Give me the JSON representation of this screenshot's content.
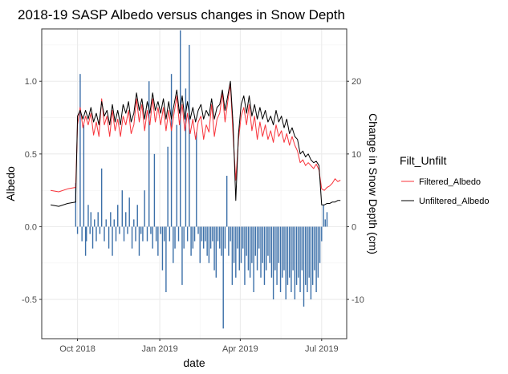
{
  "chart_data": {
    "type": "line",
    "title": "2018-19 SASP Albedo versus changes in Snow Depth",
    "xlabel": "date",
    "ylabel": "Albedo",
    "y2label": "Change in Snow Depth (cm)",
    "x_ticks": [
      "Oct 2018",
      "Jan 2019",
      "Apr 2019",
      "Jul 2019"
    ],
    "x_tick_dates": [
      "2018-10-01",
      "2019-01-01",
      "2019-04-01",
      "2019-07-01"
    ],
    "xlim": [
      "2018-08-22",
      "2019-07-29"
    ],
    "ylim": [
      -0.77,
      1.36
    ],
    "y_ticks": [
      -0.5,
      0.0,
      0.5,
      1.0
    ],
    "y_tick_labels": [
      "-0.5",
      "0.0",
      "0.5",
      "1.0"
    ],
    "y2lim": [
      -15.4,
      27.2
    ],
    "y2_ticks": [
      -10,
      0,
      10,
      20
    ],
    "y2_tick_labels": [
      "-10",
      "0",
      "10",
      "20"
    ],
    "grid": true,
    "legend": {
      "title": "Filt_Unfilt",
      "position": "right",
      "entries": [
        {
          "label": "Filtered_Albedo",
          "color": "#F8333A"
        },
        {
          "label": "Unfiltered_Albedo",
          "color": "#000000"
        }
      ]
    },
    "series": [
      {
        "name": "Filtered_Albedo",
        "color": "#F8333A",
        "dates": [
          "2018-09-01",
          "2018-09-10",
          "2018-09-20",
          "2018-09-29",
          "2018-10-01",
          "2018-10-04",
          "2018-10-07",
          "2018-10-10",
          "2018-10-13",
          "2018-10-16",
          "2018-10-19",
          "2018-10-22",
          "2018-10-25",
          "2018-10-28",
          "2018-10-31",
          "2018-11-03",
          "2018-11-06",
          "2018-11-09",
          "2018-11-12",
          "2018-11-15",
          "2018-11-18",
          "2018-11-21",
          "2018-11-24",
          "2018-11-27",
          "2018-11-30",
          "2018-12-03",
          "2018-12-06",
          "2018-12-09",
          "2018-12-12",
          "2018-12-15",
          "2018-12-18",
          "2018-12-21",
          "2018-12-24",
          "2018-12-27",
          "2018-12-30",
          "2019-01-02",
          "2019-01-05",
          "2019-01-08",
          "2019-01-11",
          "2019-01-14",
          "2019-01-17",
          "2019-01-20",
          "2019-01-23",
          "2019-01-26",
          "2019-01-29",
          "2019-02-01",
          "2019-02-04",
          "2019-02-07",
          "2019-02-10",
          "2019-02-13",
          "2019-02-16",
          "2019-02-19",
          "2019-02-22",
          "2019-02-25",
          "2019-02-28",
          "2019-03-03",
          "2019-03-06",
          "2019-03-09",
          "2019-03-12",
          "2019-03-15",
          "2019-03-18",
          "2019-03-21",
          "2019-03-24",
          "2019-03-27",
          "2019-03-30",
          "2019-04-02",
          "2019-04-05",
          "2019-04-08",
          "2019-04-11",
          "2019-04-14",
          "2019-04-17",
          "2019-04-20",
          "2019-04-23",
          "2019-04-26",
          "2019-04-29",
          "2019-05-02",
          "2019-05-05",
          "2019-05-08",
          "2019-05-11",
          "2019-05-14",
          "2019-05-17",
          "2019-05-20",
          "2019-05-23",
          "2019-05-26",
          "2019-05-29",
          "2019-06-01",
          "2019-06-04",
          "2019-06-07",
          "2019-06-10",
          "2019-06-13",
          "2019-06-16",
          "2019-06-19",
          "2019-06-22",
          "2019-06-25",
          "2019-06-28",
          "2019-07-01",
          "2019-07-04",
          "2019-07-07",
          "2019-07-10",
          "2019-07-13",
          "2019-07-16",
          "2019-07-19",
          "2019-07-22"
        ],
        "values": [
          0.25,
          0.24,
          0.26,
          0.27,
          0.7,
          0.82,
          0.68,
          0.76,
          0.7,
          0.78,
          0.63,
          0.72,
          0.62,
          0.88,
          0.7,
          0.76,
          0.62,
          0.8,
          0.66,
          0.74,
          0.62,
          0.76,
          0.7,
          0.8,
          0.64,
          0.7,
          0.88,
          0.72,
          0.84,
          0.66,
          0.8,
          0.7,
          0.88,
          0.72,
          0.82,
          0.7,
          0.82,
          0.66,
          0.8,
          0.66,
          0.78,
          0.9,
          0.7,
          0.84,
          0.66,
          0.78,
          0.64,
          0.74,
          0.6,
          0.72,
          0.76,
          0.6,
          0.7,
          0.65,
          0.84,
          0.62,
          0.74,
          0.78,
          0.92,
          0.72,
          0.86,
          0.98,
          0.62,
          0.32,
          0.6,
          0.76,
          0.82,
          0.7,
          0.84,
          0.66,
          0.76,
          0.6,
          0.72,
          0.62,
          0.7,
          0.6,
          0.66,
          0.58,
          0.7,
          0.62,
          0.66,
          0.58,
          0.64,
          0.56,
          0.62,
          0.56,
          0.52,
          0.44,
          0.46,
          0.42,
          0.44,
          0.42,
          0.4,
          0.43,
          0.39,
          0.26,
          0.25,
          0.27,
          0.28,
          0.3,
          0.33,
          0.31,
          0.32
        ]
      },
      {
        "name": "Unfiltered_Albedo",
        "color": "#000000",
        "dates": [
          "2018-09-01",
          "2018-09-10",
          "2018-09-20",
          "2018-09-29",
          "2018-10-01",
          "2018-10-04",
          "2018-10-07",
          "2018-10-10",
          "2018-10-13",
          "2018-10-16",
          "2018-10-19",
          "2018-10-22",
          "2018-10-25",
          "2018-10-28",
          "2018-10-31",
          "2018-11-03",
          "2018-11-06",
          "2018-11-09",
          "2018-11-12",
          "2018-11-15",
          "2018-11-18",
          "2018-11-21",
          "2018-11-24",
          "2018-11-27",
          "2018-11-30",
          "2018-12-03",
          "2018-12-06",
          "2018-12-09",
          "2018-12-12",
          "2018-12-15",
          "2018-12-18",
          "2018-12-21",
          "2018-12-24",
          "2018-12-27",
          "2018-12-30",
          "2019-01-02",
          "2019-01-05",
          "2019-01-08",
          "2019-01-11",
          "2019-01-14",
          "2019-01-17",
          "2019-01-20",
          "2019-01-23",
          "2019-01-26",
          "2019-01-29",
          "2019-02-01",
          "2019-02-04",
          "2019-02-07",
          "2019-02-10",
          "2019-02-13",
          "2019-02-16",
          "2019-02-19",
          "2019-02-22",
          "2019-02-25",
          "2019-02-28",
          "2019-03-03",
          "2019-03-06",
          "2019-03-09",
          "2019-03-12",
          "2019-03-15",
          "2019-03-18",
          "2019-03-21",
          "2019-03-24",
          "2019-03-27",
          "2019-03-30",
          "2019-04-02",
          "2019-04-05",
          "2019-04-08",
          "2019-04-11",
          "2019-04-14",
          "2019-04-17",
          "2019-04-20",
          "2019-04-23",
          "2019-04-26",
          "2019-04-29",
          "2019-05-02",
          "2019-05-05",
          "2019-05-08",
          "2019-05-11",
          "2019-05-14",
          "2019-05-17",
          "2019-05-20",
          "2019-05-23",
          "2019-05-26",
          "2019-05-29",
          "2019-06-01",
          "2019-06-04",
          "2019-06-07",
          "2019-06-10",
          "2019-06-13",
          "2019-06-16",
          "2019-06-19",
          "2019-06-22",
          "2019-06-25",
          "2019-06-28",
          "2019-07-01",
          "2019-07-04",
          "2019-07-07",
          "2019-07-10",
          "2019-07-13",
          "2019-07-16",
          "2019-07-19",
          "2019-07-22"
        ],
        "values": [
          0.15,
          0.14,
          0.16,
          0.17,
          0.76,
          0.8,
          0.74,
          0.8,
          0.74,
          0.82,
          0.72,
          0.78,
          0.7,
          0.86,
          0.76,
          0.8,
          0.7,
          0.84,
          0.72,
          0.8,
          0.7,
          0.84,
          0.78,
          0.86,
          0.72,
          0.78,
          0.92,
          0.8,
          0.88,
          0.74,
          0.86,
          0.78,
          0.92,
          0.8,
          0.86,
          0.78,
          0.88,
          0.74,
          0.86,
          0.74,
          0.84,
          0.94,
          0.78,
          0.9,
          0.74,
          0.86,
          0.74,
          0.82,
          0.72,
          0.8,
          0.84,
          0.74,
          0.8,
          0.76,
          0.88,
          0.74,
          0.82,
          0.84,
          0.94,
          0.8,
          0.9,
          1.0,
          0.7,
          0.18,
          0.64,
          0.84,
          0.9,
          0.78,
          0.9,
          0.76,
          0.84,
          0.74,
          0.82,
          0.74,
          0.8,
          0.72,
          0.76,
          0.7,
          0.8,
          0.72,
          0.76,
          0.68,
          0.74,
          0.64,
          0.68,
          0.62,
          0.6,
          0.5,
          0.52,
          0.48,
          0.5,
          0.46,
          0.44,
          0.45,
          0.42,
          0.15,
          0.15,
          0.16,
          0.16,
          0.17,
          0.17,
          0.18,
          0.18
        ]
      }
    ],
    "bars": {
      "name": "Change in Snow Depth",
      "color": "#3B6FA8",
      "axis": "right",
      "dates": [
        "2018-09-29",
        "2018-10-01",
        "2018-10-04",
        "2018-10-06",
        "2018-10-08",
        "2018-10-10",
        "2018-10-11",
        "2018-10-13",
        "2018-10-15",
        "2018-10-16",
        "2018-10-18",
        "2018-10-20",
        "2018-10-22",
        "2018-10-24",
        "2018-10-26",
        "2018-10-28",
        "2018-10-31",
        "2018-11-02",
        "2018-11-05",
        "2018-11-07",
        "2018-11-09",
        "2018-11-11",
        "2018-11-13",
        "2018-11-15",
        "2018-11-17",
        "2018-11-20",
        "2018-11-22",
        "2018-11-24",
        "2018-11-26",
        "2018-11-28",
        "2018-12-01",
        "2018-12-03",
        "2018-12-05",
        "2018-12-07",
        "2018-12-09",
        "2018-12-11",
        "2018-12-13",
        "2018-12-15",
        "2018-12-18",
        "2018-12-20",
        "2018-12-22",
        "2018-12-24",
        "2018-12-26",
        "2018-12-28",
        "2018-12-30",
        "2019-01-02",
        "2019-01-04",
        "2019-01-06",
        "2019-01-08",
        "2019-01-10",
        "2019-01-12",
        "2019-01-14",
        "2019-01-16",
        "2019-01-18",
        "2019-01-20",
        "2019-01-22",
        "2019-01-24",
        "2019-01-26",
        "2019-01-28",
        "2019-01-30",
        "2019-02-01",
        "2019-02-03",
        "2019-02-05",
        "2019-02-07",
        "2019-02-09",
        "2019-02-11",
        "2019-02-13",
        "2019-02-15",
        "2019-02-17",
        "2019-02-19",
        "2019-02-21",
        "2019-02-23",
        "2019-02-25",
        "2019-02-27",
        "2019-03-01",
        "2019-03-03",
        "2019-03-05",
        "2019-03-07",
        "2019-03-09",
        "2019-03-11",
        "2019-03-13",
        "2019-03-15",
        "2019-03-17",
        "2019-03-19",
        "2019-03-21",
        "2019-03-23",
        "2019-03-25",
        "2019-03-27",
        "2019-03-29",
        "2019-03-31",
        "2019-04-02",
        "2019-04-04",
        "2019-04-06",
        "2019-04-08",
        "2019-04-10",
        "2019-04-12",
        "2019-04-14",
        "2019-04-16",
        "2019-04-18",
        "2019-04-20",
        "2019-04-22",
        "2019-04-24",
        "2019-04-26",
        "2019-04-28",
        "2019-04-30",
        "2019-05-02",
        "2019-05-04",
        "2019-05-06",
        "2019-05-08",
        "2019-05-10",
        "2019-05-12",
        "2019-05-14",
        "2019-05-16",
        "2019-05-18",
        "2019-05-20",
        "2019-05-22",
        "2019-05-24",
        "2019-05-26",
        "2019-05-28",
        "2019-05-30",
        "2019-06-01",
        "2019-06-03",
        "2019-06-05",
        "2019-06-07",
        "2019-06-09",
        "2019-06-11",
        "2019-06-13",
        "2019-06-15",
        "2019-06-17",
        "2019-06-19",
        "2019-06-21",
        "2019-06-23",
        "2019-06-25",
        "2019-06-27",
        "2019-06-29",
        "2019-07-01",
        "2019-07-03",
        "2019-07-05",
        "2019-07-07"
      ],
      "values": [
        6,
        -1,
        21,
        -2,
        14,
        -4,
        -2,
        3,
        -1,
        2,
        -3,
        1,
        -2,
        2,
        -1,
        8,
        -2,
        1,
        -3,
        2,
        -4,
        1,
        -2,
        3,
        -1,
        5,
        -2,
        2,
        -1,
        4,
        -3,
        1,
        -2,
        3,
        -4,
        -1,
        -2,
        5,
        -2,
        20,
        -1,
        -3,
        10,
        -2,
        -4,
        -1,
        -6,
        -2,
        -9,
        11,
        -2,
        21,
        -5,
        -3,
        14,
        -2,
        27,
        -8,
        -3,
        19,
        -2,
        25,
        -4,
        -3,
        -2,
        13,
        -1,
        -5,
        -2,
        -3,
        -2,
        -4,
        -5,
        -3,
        -2,
        -6,
        -7,
        -2,
        -3,
        -4,
        -14,
        -3,
        7,
        -4,
        -2,
        -8,
        -5,
        -7,
        -3,
        -6,
        -5,
        -3,
        -8,
        -4,
        -6,
        -7,
        -5,
        -9,
        -4,
        -6,
        -3,
        -7,
        -5,
        -8,
        -6,
        -4,
        -5,
        -7,
        -10,
        -6,
        -8,
        -5,
        -9,
        -7,
        -6,
        -10,
        -8,
        -7,
        -9,
        -6,
        -10,
        -8,
        -7,
        -9,
        -6,
        -11,
        -8,
        -9,
        -7,
        -10,
        -8,
        -6,
        -9,
        -7,
        -5,
        -2,
        3,
        1,
        2
      ]
    }
  }
}
